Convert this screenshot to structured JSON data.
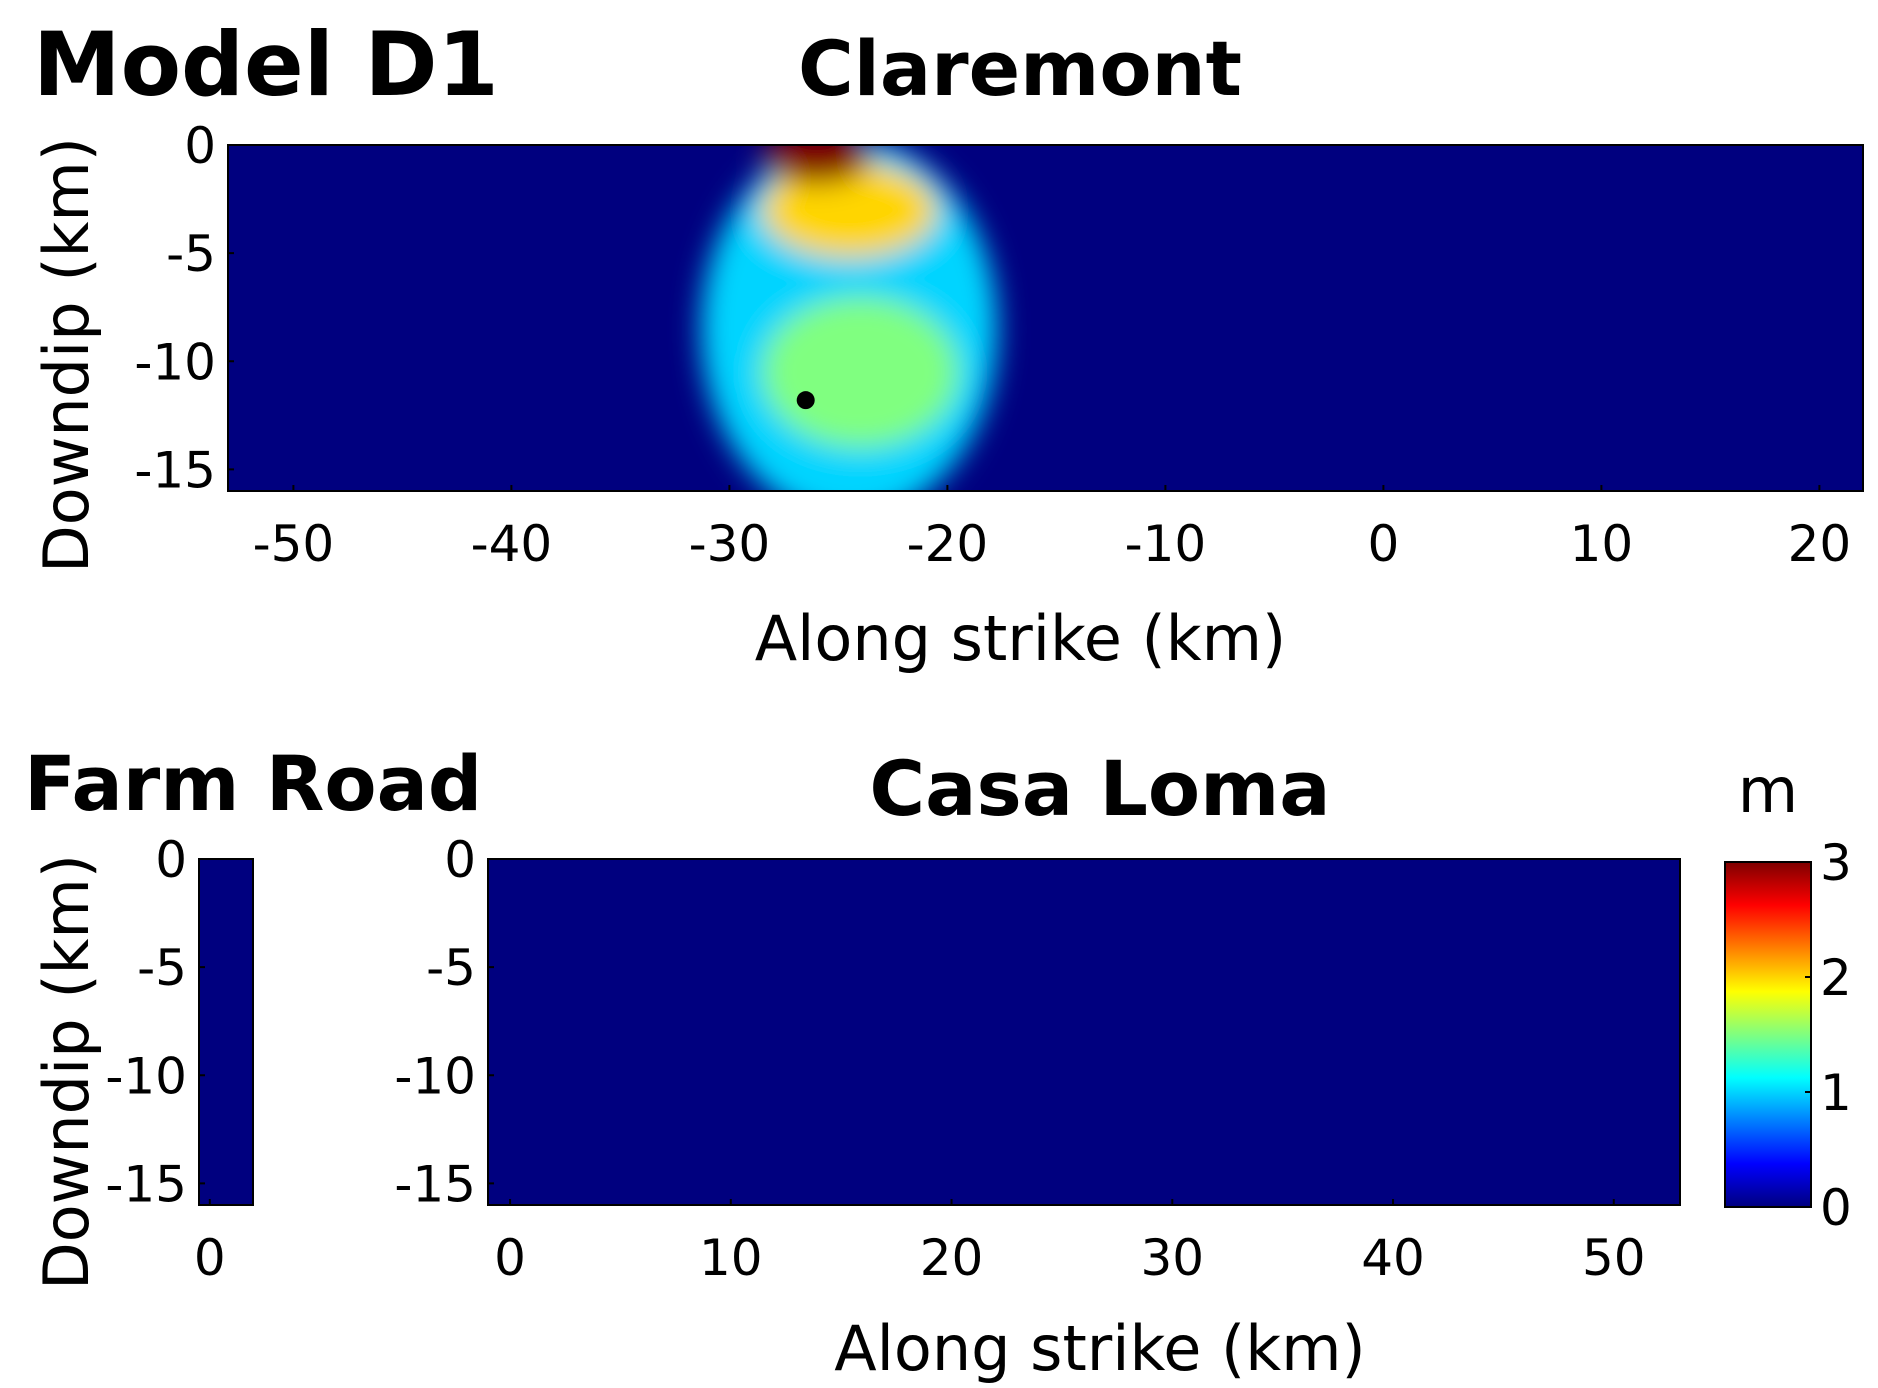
{
  "figure_label": "Model D1",
  "colorbar": {
    "unit": "m",
    "ticks": [
      "3",
      "2",
      "1",
      "0"
    ],
    "colormap": [
      "#00007f",
      "#0000ff",
      "#00ffff",
      "#ffff00",
      "#ff0000",
      "#7f0000"
    ]
  },
  "chart_data": [
    {
      "type": "heatmap",
      "title": "Claremont",
      "xlabel": "Along strike (km)",
      "ylabel": "Downdip (km)",
      "xlim": [
        -53,
        22
      ],
      "ylim": [
        -16,
        0
      ],
      "xticks": [
        "-50",
        "-40",
        "-30",
        "-20",
        "-10",
        "0",
        "10",
        "20"
      ],
      "yticks": [
        "0",
        "-5",
        "-10",
        "-15"
      ],
      "value_range": [
        0,
        3
      ],
      "background_value": 0,
      "slip_patches": [
        {
          "x": -24.5,
          "y": -8.5,
          "rx": 6.8,
          "ry": 8.8,
          "value": 1.0
        },
        {
          "x": -24.0,
          "y": -10.5,
          "rx": 4.5,
          "ry": 3.5,
          "value": 1.5
        },
        {
          "x": -24.5,
          "y": -3.0,
          "rx": 4.0,
          "ry": 2.2,
          "value": 2.0
        },
        {
          "x": -26.0,
          "y": -0.5,
          "rx": 2.5,
          "ry": 1.3,
          "value": 3.0
        }
      ],
      "hypocenter": {
        "x": -26.5,
        "y": -11.8
      }
    },
    {
      "type": "heatmap",
      "title": "Farm Road",
      "xlabel": "",
      "ylabel": "Downdip (km)",
      "xlim": [
        -0.5,
        2
      ],
      "ylim": [
        -16,
        0
      ],
      "xticks": [
        "0"
      ],
      "yticks": [
        "0",
        "-5",
        "-10",
        "-15"
      ],
      "value_range": [
        0,
        3
      ],
      "background_value": 0
    },
    {
      "type": "heatmap",
      "title": "Casa Loma",
      "xlabel": "Along strike (km)",
      "ylabel": "",
      "xlim": [
        -1,
        53
      ],
      "ylim": [
        -16,
        0
      ],
      "xticks": [
        "0",
        "10",
        "20",
        "30",
        "40",
        "50"
      ],
      "yticks": [
        "0",
        "-5",
        "-10",
        "-15"
      ],
      "value_range": [
        0,
        3
      ],
      "background_value": 0
    }
  ]
}
